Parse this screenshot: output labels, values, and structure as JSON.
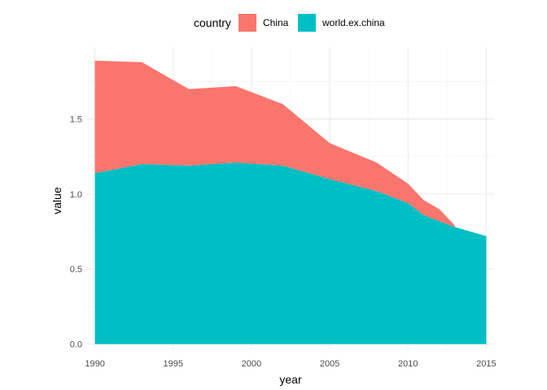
{
  "chart_data": {
    "type": "area",
    "stacked": true,
    "xlabel": "year",
    "ylabel": "value",
    "xlim": [
      1989.5,
      2015.5
    ],
    "ylim": [
      -0.03,
      1.98
    ],
    "x_ticks": [
      1990,
      1995,
      2000,
      2005,
      2010,
      2015
    ],
    "x_tick_labels": [
      "1990",
      "1995",
      "2000",
      "2005",
      "2010",
      "2015"
    ],
    "y_ticks": [
      0.0,
      0.5,
      1.0,
      1.5
    ],
    "y_tick_labels": [
      "0.0",
      "0.5",
      "1.0",
      "1.5"
    ],
    "grid": true,
    "legend": {
      "title": "country",
      "position": "top",
      "entries": [
        {
          "label": "China",
          "color": "#F8766D"
        },
        {
          "label": "world.ex.china",
          "color": "#00BFC4"
        }
      ]
    },
    "series": [
      {
        "name": "China",
        "color": "#F8766D",
        "x": [
          1990,
          1993,
          1996,
          1999,
          2002,
          2005,
          2008,
          2010,
          2011,
          2012,
          2013
        ],
        "values": [
          0.75,
          0.68,
          0.51,
          0.51,
          0.41,
          0.24,
          0.19,
          0.13,
          0.1,
          0.08,
          0.01
        ]
      },
      {
        "name": "world.ex.china",
        "color": "#00BFC4",
        "x": [
          1990,
          1993,
          1996,
          1999,
          2002,
          2005,
          2008,
          2010,
          2011,
          2012,
          2013,
          2015
        ],
        "values": [
          1.14,
          1.2,
          1.19,
          1.21,
          1.19,
          1.1,
          1.02,
          0.94,
          0.86,
          0.82,
          0.78,
          0.72
        ]
      }
    ]
  }
}
